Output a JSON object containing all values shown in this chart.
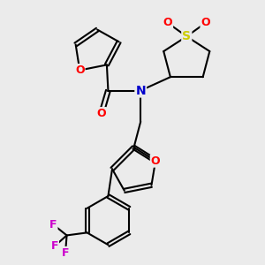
{
  "background_color": "#ebebeb",
  "atom_colors": {
    "O": "#ff0000",
    "N": "#0000cc",
    "S": "#cccc00",
    "F": "#cc00cc",
    "C": "#000000"
  },
  "bond_color": "#000000",
  "bond_width": 1.5,
  "figsize": [
    3.0,
    3.0
  ],
  "dpi": 100
}
